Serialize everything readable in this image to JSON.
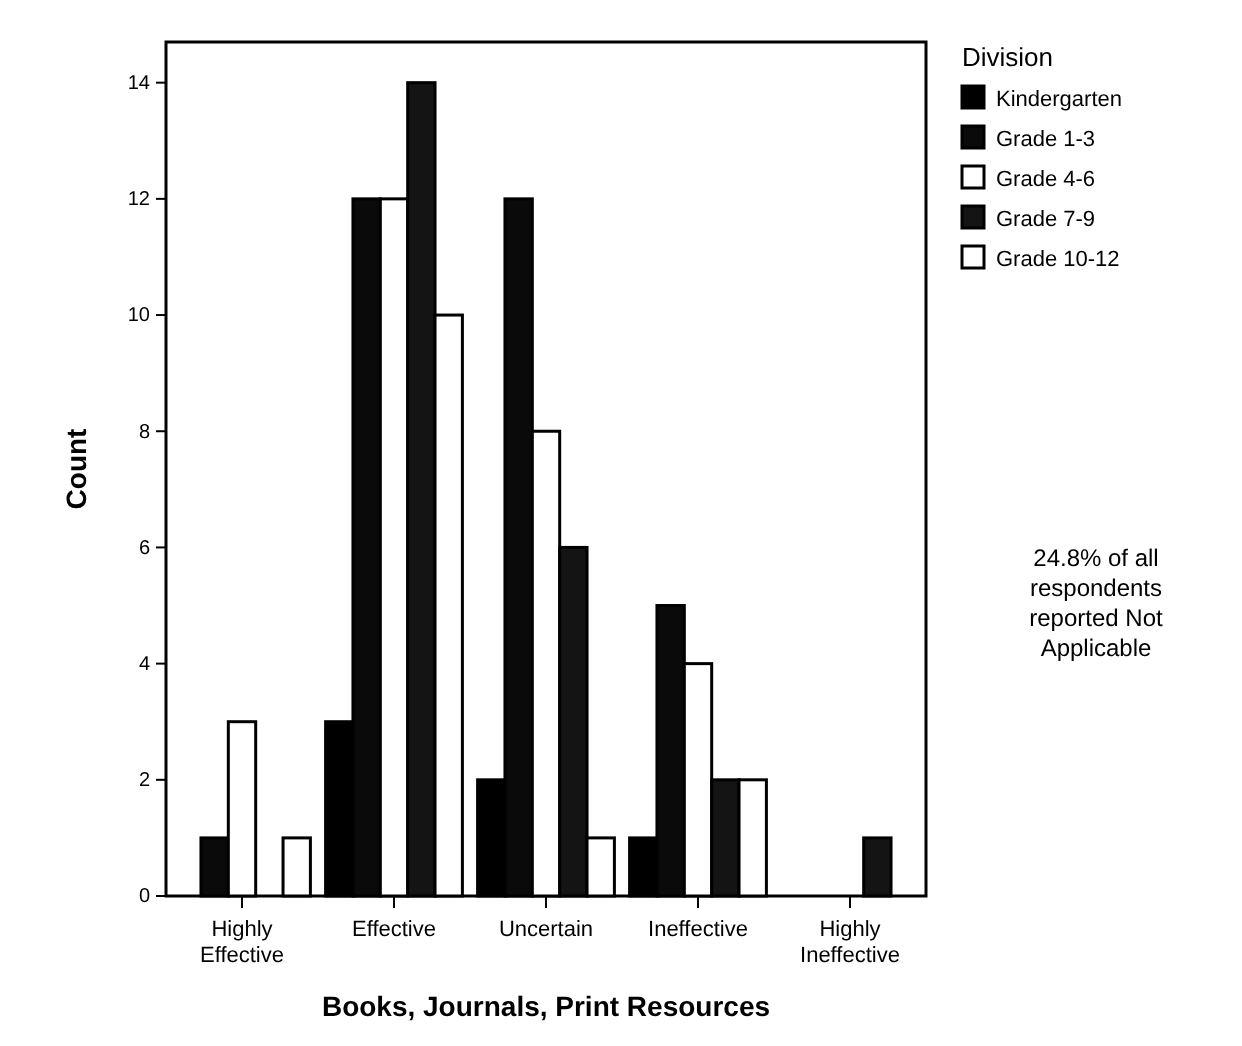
{
  "chart_data": {
    "type": "bar",
    "xlabel": "Books, Journals, Print Resources",
    "ylabel": "Count",
    "legend_title": "Division",
    "legend": "right",
    "categories": [
      "Highly Effective",
      "Effective",
      "Uncertain",
      "Ineffective",
      "Highly Ineffective"
    ],
    "series": [
      {
        "name": "Kindergarten",
        "color": "#000000",
        "values": [
          0,
          3,
          2,
          1,
          0
        ]
      },
      {
        "name": "Grade 1-3",
        "color": "#0a0a0a",
        "values": [
          1,
          12,
          12,
          5,
          0
        ]
      },
      {
        "name": "Grade 4-6",
        "color": "#ffffff",
        "values": [
          3,
          12,
          8,
          4,
          0
        ]
      },
      {
        "name": "Grade 7-9",
        "color": "#141414",
        "values": [
          0,
          14,
          6,
          2,
          1
        ]
      },
      {
        "name": "Grade 10-12",
        "color": "#ffffff",
        "values": [
          1,
          10,
          1,
          2,
          0
        ]
      }
    ],
    "ylim": [
      0,
      14.7
    ],
    "yticks": [
      0,
      2,
      4,
      6,
      8,
      10,
      12,
      14
    ],
    "grid": false,
    "annotations": [
      "24.8% of all respondents reported Not Applicable"
    ]
  }
}
